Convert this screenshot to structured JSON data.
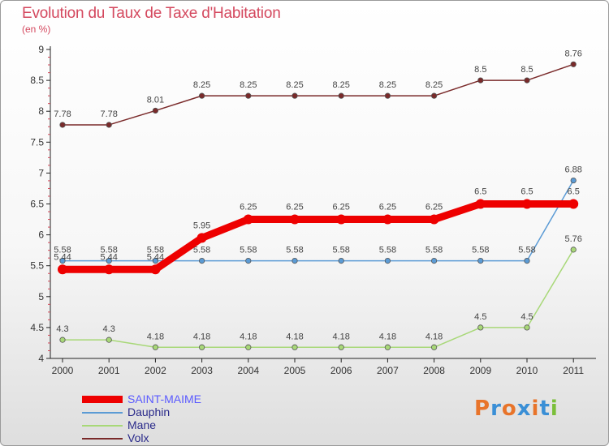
{
  "header": {
    "title": "Evolution du Taux de Taxe d'Habitation",
    "unit": "(en %)"
  },
  "logo": {
    "text": "Proxiti",
    "letters": [
      "P",
      "r",
      "o",
      "x",
      "i",
      "t",
      "i"
    ],
    "colors": [
      "#e8742a",
      "#3a8fd6",
      "#e8742a",
      "#3a8fd6",
      "#e8742a",
      "#3a8fd6",
      "#7bbf3a"
    ]
  },
  "chart_data": {
    "type": "line",
    "title": "Evolution du Taux de Taxe d'Habitation",
    "ylabel": "(en %)",
    "xlabel": "",
    "categories": [
      "2000",
      "2001",
      "2002",
      "2003",
      "2004",
      "2005",
      "2006",
      "2007",
      "2008",
      "2009",
      "2010",
      "2011"
    ],
    "ylim": [
      4,
      9
    ],
    "yticks": [
      "4",
      "4.5",
      "5",
      "5.5",
      "6",
      "6.5",
      "7",
      "7.5",
      "8",
      "8.5",
      "9"
    ],
    "grid": false,
    "legend_position": "bottom-left",
    "series": [
      {
        "name": "SAINT-MAIME",
        "color": "#ee0000",
        "legend_color": "#5a5aff",
        "values": [
          5.44,
          5.44,
          5.44,
          5.95,
          6.25,
          6.25,
          6.25,
          6.25,
          6.25,
          6.5,
          6.5,
          6.5
        ],
        "labels": [
          "5.44",
          "5.44",
          "5.44",
          "5.95",
          "6.25",
          "6.25",
          "6.25",
          "6.25",
          "6.25",
          "6.5",
          "6.5",
          "6.5"
        ]
      },
      {
        "name": "Dauphin",
        "color": "#5b9bd5",
        "legend_color": "#2a2a8a",
        "values": [
          5.58,
          5.58,
          5.58,
          5.58,
          5.58,
          5.58,
          5.58,
          5.58,
          5.58,
          5.58,
          5.58,
          6.88
        ],
        "labels": [
          "5.58",
          "5.58",
          "5.58",
          "5.58",
          "5.58",
          "5.58",
          "5.58",
          "5.58",
          "5.58",
          "5.58",
          "5.58",
          "6.88"
        ]
      },
      {
        "name": "Mane",
        "color": "#a8d878",
        "legend_color": "#2a2a8a",
        "values": [
          4.3,
          4.3,
          4.18,
          4.18,
          4.18,
          4.18,
          4.18,
          4.18,
          4.18,
          4.5,
          4.5,
          5.76
        ],
        "labels": [
          "4.3",
          "4.3",
          "4.18",
          "4.18",
          "4.18",
          "4.18",
          "4.18",
          "4.18",
          "4.18",
          "4.5",
          "4.5",
          "5.76"
        ]
      },
      {
        "name": "Volx",
        "color": "#7a2a2a",
        "legend_color": "#2a2a8a",
        "values": [
          7.78,
          7.78,
          8.01,
          8.25,
          8.25,
          8.25,
          8.25,
          8.25,
          8.25,
          8.5,
          8.5,
          8.76
        ],
        "labels": [
          "7.78",
          "7.78",
          "8.01",
          "8.25",
          "8.25",
          "8.25",
          "8.25",
          "8.25",
          "8.25",
          "8.5",
          "8.5",
          "8.76"
        ]
      }
    ]
  }
}
